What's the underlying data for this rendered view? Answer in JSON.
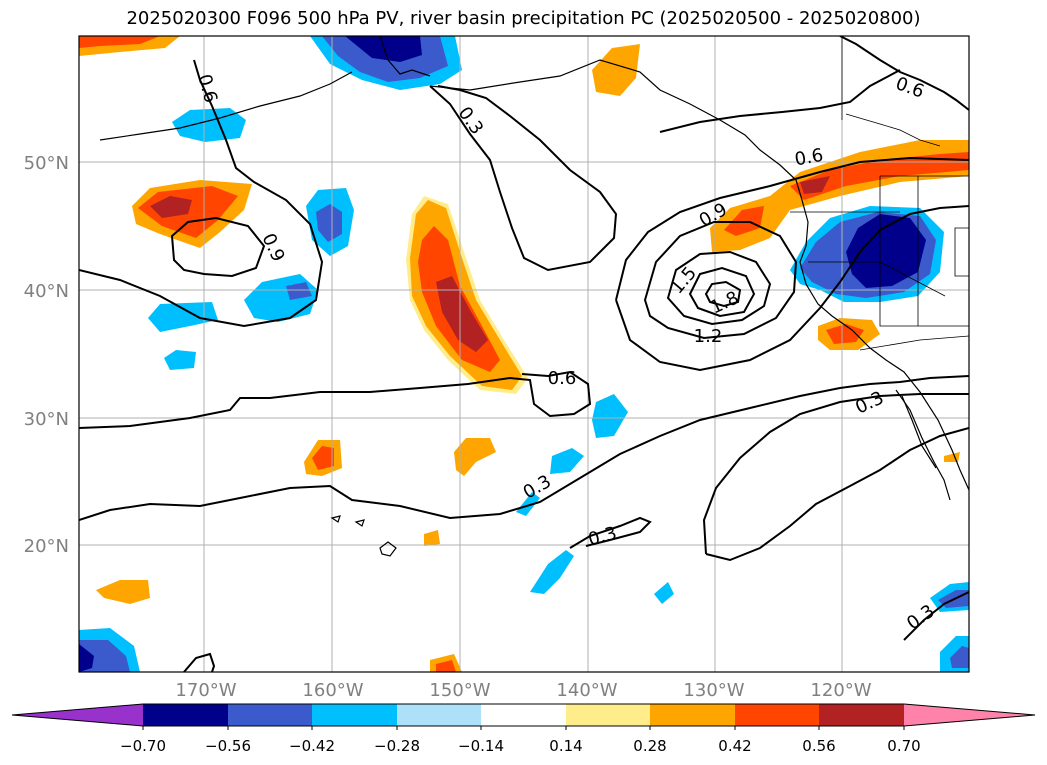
{
  "title": "2025020300 F096 500 hPa PV, river basin precipitation PC (2025020500 - 2025020800)",
  "map": {
    "lat_ticks": [
      "50°N",
      "40°N",
      "30°N",
      "20°N"
    ],
    "lon_ticks": [
      "170°W",
      "160°W",
      "150°W",
      "140°W",
      "130°W",
      "120°W"
    ],
    "contour_labels": [
      "0.6",
      "0.3",
      "0.6",
      "0.6",
      "0.9",
      "0.9",
      "1.5",
      "1.8",
      "1.2",
      "0.6",
      "0.3",
      "0.3",
      "0.3",
      "0.3"
    ],
    "colors": {
      "coast": "#000000",
      "contour": "#000000",
      "grid": "#b0b0b0",
      "tick_label": "#808080"
    }
  },
  "colorbar": {
    "levels": [
      "−0.70",
      "−0.56",
      "−0.42",
      "−0.28",
      "−0.14",
      "0.14",
      "0.28",
      "0.42",
      "0.56",
      "0.70"
    ],
    "colors": [
      "#9932CC",
      "#00008B",
      "#3B5BCC",
      "#00BFFF",
      "#ADE1FA",
      "#FFFFFF",
      "#FFEC8B",
      "#FFA500",
      "#FF4500",
      "#B22222",
      "#FF82AB"
    ]
  }
}
